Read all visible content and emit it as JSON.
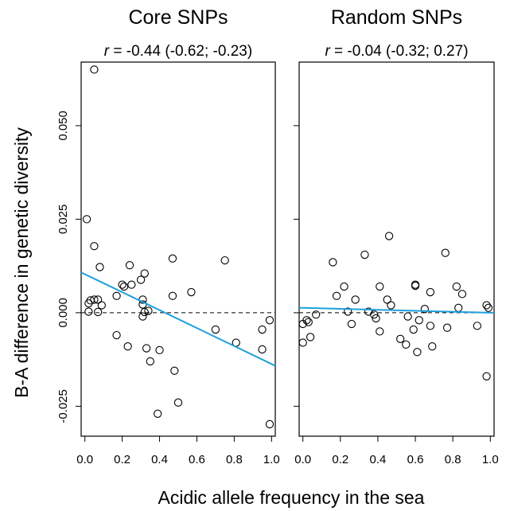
{
  "chart_data": [
    {
      "type": "scatter",
      "title": "Core SNPs",
      "stat_prefix": "r",
      "stat_text": " = -0.44 (-0.62; -0.23)",
      "xlabel": "Acidic allele frequency in the sea",
      "ylabel": "B-A difference in genetic diversity",
      "xlim": [
        -0.02,
        1.02
      ],
      "ylim": [
        -0.033,
        0.067
      ],
      "xticks": [
        "0.0",
        "0.2",
        "0.4",
        "0.6",
        "0.8",
        "1.0"
      ],
      "yticks": [
        "-0.025",
        "0.000",
        "0.025",
        "0.050"
      ],
      "reference_line_y": 0,
      "fit_line": {
        "color": "#1ea0dc",
        "intercept": 0.0103,
        "slope": -0.024
      },
      "points": [
        [
          0.05,
          0.065
        ],
        [
          0.01,
          0.025
        ],
        [
          0.05,
          0.0178
        ],
        [
          0.08,
          0.0122
        ],
        [
          0.02,
          0.0025
        ],
        [
          0.03,
          0.0033
        ],
        [
          0.05,
          0.0035
        ],
        [
          0.07,
          0.0035
        ],
        [
          0.09,
          0.002
        ],
        [
          0.02,
          0.0003
        ],
        [
          0.07,
          0.0002
        ],
        [
          0.17,
          0.0045
        ],
        [
          0.2,
          0.0075
        ],
        [
          0.21,
          0.007
        ],
        [
          0.24,
          0.0127
        ],
        [
          0.25,
          0.0075
        ],
        [
          0.3,
          0.0088
        ],
        [
          0.32,
          0.0105
        ],
        [
          0.31,
          0.0035
        ],
        [
          0.31,
          0.0022
        ],
        [
          0.32,
          0.0002
        ],
        [
          0.31,
          -0.001
        ],
        [
          0.34,
          0.0005
        ],
        [
          0.17,
          -0.006
        ],
        [
          0.23,
          -0.009
        ],
        [
          0.33,
          -0.0095
        ],
        [
          0.35,
          -0.013
        ],
        [
          0.39,
          -0.027
        ],
        [
          0.4,
          -0.01
        ],
        [
          0.47,
          0.0145
        ],
        [
          0.47,
          0.0045
        ],
        [
          0.48,
          -0.0155
        ],
        [
          0.5,
          -0.024
        ],
        [
          0.57,
          0.0055
        ],
        [
          0.7,
          -0.0045
        ],
        [
          0.75,
          0.014
        ],
        [
          0.81,
          -0.008
        ],
        [
          0.95,
          -0.0045
        ],
        [
          0.99,
          -0.002
        ],
        [
          0.95,
          -0.0098
        ],
        [
          0.99,
          -0.0298
        ]
      ]
    },
    {
      "type": "scatter",
      "title": "Random SNPs",
      "stat_prefix": "r",
      "stat_text": " = -0.04 (-0.32; 0.27)",
      "xlabel": "Acidic allele frequency in the sea",
      "ylabel": "B-A difference in genetic diversity",
      "xlim": [
        -0.02,
        1.02
      ],
      "ylim": [
        -0.033,
        0.067
      ],
      "xticks": [
        "0.0",
        "0.2",
        "0.4",
        "0.6",
        "0.8",
        "1.0"
      ],
      "yticks": [
        "-0.025",
        "0.000",
        "0.025",
        "0.050"
      ],
      "reference_line_y": 0,
      "fit_line": {
        "color": "#1ea0dc",
        "intercept": 0.0013,
        "slope": -0.0013
      },
      "points": [
        [
          0.0,
          -0.003
        ],
        [
          0.0,
          -0.008
        ],
        [
          0.02,
          -0.002
        ],
        [
          0.03,
          -0.0025
        ],
        [
          0.04,
          -0.0065
        ],
        [
          0.07,
          -0.0005
        ],
        [
          0.16,
          0.0135
        ],
        [
          0.18,
          0.0045
        ],
        [
          0.22,
          0.007
        ],
        [
          0.24,
          0.0003
        ],
        [
          0.26,
          -0.003
        ],
        [
          0.28,
          0.0035
        ],
        [
          0.33,
          0.0155
        ],
        [
          0.35,
          0.0003
        ],
        [
          0.38,
          -0.0005
        ],
        [
          0.39,
          -0.0015
        ],
        [
          0.41,
          -0.005
        ],
        [
          0.41,
          0.007
        ],
        [
          0.45,
          0.0035
        ],
        [
          0.46,
          0.0205
        ],
        [
          0.47,
          0.002
        ],
        [
          0.52,
          -0.007
        ],
        [
          0.55,
          -0.0085
        ],
        [
          0.56,
          -0.001
        ],
        [
          0.59,
          -0.0045
        ],
        [
          0.6,
          0.0075
        ],
        [
          0.6,
          0.0072
        ],
        [
          0.61,
          -0.0105
        ],
        [
          0.62,
          -0.002
        ],
        [
          0.65,
          0.001
        ],
        [
          0.68,
          0.0055
        ],
        [
          0.68,
          -0.0035
        ],
        [
          0.69,
          -0.009
        ],
        [
          0.76,
          0.016
        ],
        [
          0.77,
          -0.004
        ],
        [
          0.82,
          0.007
        ],
        [
          0.83,
          0.0013
        ],
        [
          0.85,
          0.005
        ],
        [
          0.93,
          -0.0035
        ],
        [
          0.98,
          0.002
        ],
        [
          0.99,
          0.0013
        ],
        [
          0.98,
          -0.017
        ]
      ]
    }
  ]
}
